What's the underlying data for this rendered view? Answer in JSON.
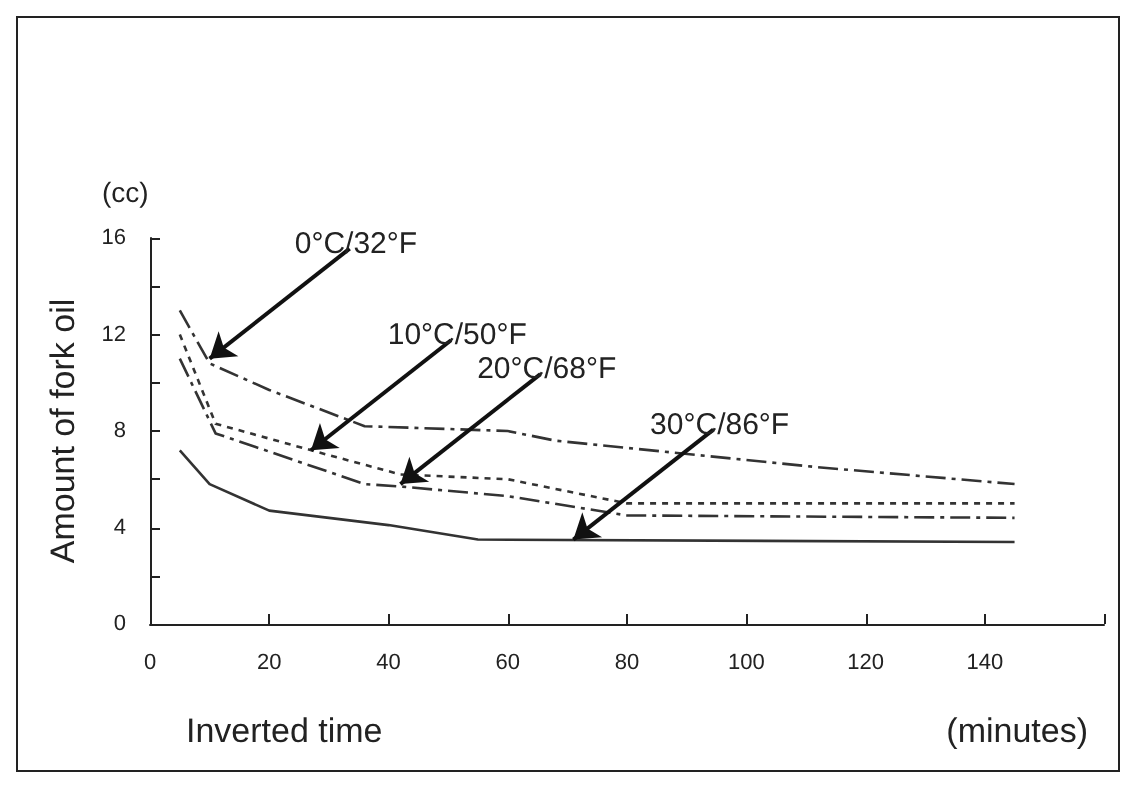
{
  "chart_data": {
    "type": "line",
    "xlabel": "Inverted time",
    "ylabel": "Amount of fork oil",
    "xlim": [
      0,
      160
    ],
    "xticks": [
      0,
      20,
      40,
      60,
      80,
      100,
      120,
      140,
      {
        "value": 160,
        "label": null
      }
    ],
    "ylim": [
      0,
      16
    ],
    "yticks": [
      0,
      {
        "value": 2,
        "label": null
      },
      4,
      {
        "value": 6,
        "label": null
      },
      8,
      {
        "value": 10,
        "label": null
      },
      12,
      {
        "value": 14,
        "label": null
      },
      16
    ],
    "grid": false,
    "marker": "none",
    "series": [
      {
        "color": "#333333",
        "line_style": "dashed",
        "x": [
          5,
          10,
          20,
          36,
          60,
          68,
          112,
          145
        ],
        "values": [
          13,
          10.8,
          9.7,
          8.2,
          8.0,
          7.6,
          6.5,
          5.8
        ]
      },
      {
        "color": "#333333",
        "line_style": "dotted",
        "x": [
          5,
          11,
          30,
          42,
          60,
          80,
          145
        ],
        "values": [
          12,
          8.3,
          7.0,
          6.2,
          6.0,
          5.0,
          5.0
        ]
      },
      {
        "color": "#333333",
        "line_style": "dashed",
        "x": [
          5,
          11,
          36,
          42,
          60,
          80,
          145
        ],
        "values": [
          11,
          7.9,
          5.8,
          5.7,
          5.3,
          4.5,
          4.4
        ]
      },
      {
        "color": "#333333",
        "line_style": "solid",
        "x": [
          5,
          10,
          20,
          40,
          55,
          145
        ],
        "values": [
          7.2,
          5.8,
          4.7,
          4.1,
          3.5,
          3.4
        ]
      }
    ],
    "annotations": [
      {
        "text": "0°C/32°F",
        "x": 10,
        "y": 11
      },
      {
        "text": "10°C/50°F",
        "x": 27,
        "y": 7.2
      },
      {
        "text": "20°C/68°F",
        "x": 42,
        "y": 5.8
      },
      {
        "text": "30°C/86°F",
        "x": 71,
        "y": 3.5
      },
      "(cc)",
      "(minutes)"
    ]
  }
}
